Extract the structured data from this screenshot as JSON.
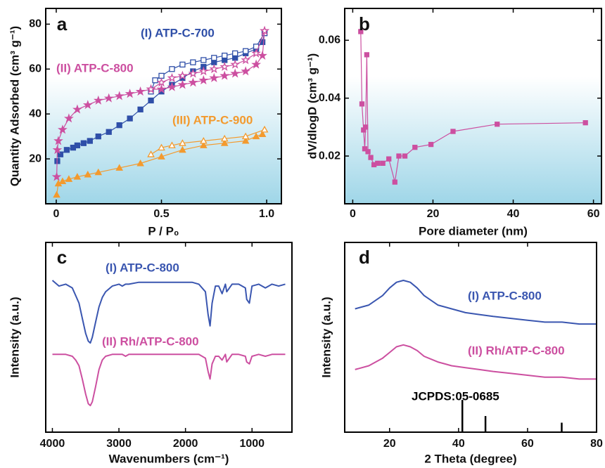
{
  "chart_data": [
    {
      "type": "line",
      "panel_label": "a",
      "xlabel": "P / P₀",
      "ylabel": "Quantity Adsorbed (cm³ g⁻¹)",
      "xlim": [
        -0.05,
        1.07
      ],
      "ylim": [
        0,
        87
      ],
      "xticks": [
        0,
        0.5,
        {
          "value": 1,
          "label": "1.0"
        }
      ],
      "yticks": [
        20,
        40,
        60,
        80
      ],
      "series": [
        {
          "name": "(I) ATP-C-700",
          "color": "#2f4fa8",
          "marker": "square",
          "filled": true,
          "x": [
            0.005,
            0.02,
            0.05,
            0.08,
            0.1,
            0.13,
            0.16,
            0.2,
            0.25,
            0.3,
            0.35,
            0.4,
            0.45,
            0.5,
            0.55,
            0.6,
            0.65,
            0.7,
            0.75,
            0.8,
            0.85,
            0.9,
            0.95,
            0.98,
            0.99
          ],
          "values": [
            19,
            22,
            24,
            25,
            26,
            27,
            28,
            30,
            32,
            35,
            38,
            42,
            46,
            50,
            53,
            56,
            59,
            61,
            63,
            64,
            65,
            67,
            69,
            72,
            76
          ]
        },
        {
          "color": "#2f4fa8",
          "marker": "square",
          "filled": false,
          "x": [
            0.99,
            0.95,
            0.9,
            0.85,
            0.8,
            0.75,
            0.7,
            0.65,
            0.6,
            0.55,
            0.5,
            0.47,
            0.45
          ],
          "values": [
            76,
            70,
            68,
            67,
            66,
            65,
            64,
            63,
            62,
            60,
            57,
            55,
            50
          ]
        },
        {
          "name": "(II) ATP-C-800",
          "color": "#cc4fa0",
          "marker": "star",
          "filled": true,
          "x": [
            0.002,
            0.005,
            0.01,
            0.03,
            0.06,
            0.1,
            0.15,
            0.2,
            0.25,
            0.3,
            0.35,
            0.4,
            0.45,
            0.5,
            0.55,
            0.6,
            0.65,
            0.7,
            0.75,
            0.8,
            0.85,
            0.9,
            0.95,
            0.98,
            0.99
          ],
          "values": [
            12,
            24,
            28,
            33,
            38,
            42,
            44,
            46,
            47,
            48,
            49,
            50,
            51,
            51,
            52,
            53,
            54,
            55,
            56,
            57,
            58,
            59,
            62,
            66,
            77
          ]
        },
        {
          "color": "#cc4fa0",
          "marker": "star",
          "filled": false,
          "x": [
            0.99,
            0.95,
            0.9,
            0.85,
            0.8,
            0.75,
            0.7,
            0.65,
            0.6,
            0.55,
            0.5,
            0.45
          ],
          "values": [
            77,
            67,
            64,
            62,
            61,
            60,
            59,
            58,
            57,
            56,
            54,
            51
          ]
        },
        {
          "name": "(III) ATP-C-900",
          "color": "#f39a2e",
          "marker": "triangle",
          "filled": true,
          "x": [
            0.002,
            0.01,
            0.03,
            0.06,
            0.1,
            0.15,
            0.2,
            0.3,
            0.4,
            0.5,
            0.6,
            0.7,
            0.8,
            0.9,
            0.95,
            0.98,
            0.99
          ],
          "values": [
            4,
            9,
            10,
            11,
            12,
            13,
            14,
            16,
            18,
            21,
            24,
            26,
            27,
            28,
            30,
            31,
            33
          ]
        },
        {
          "color": "#f39a2e",
          "marker": "triangle",
          "filled": false,
          "x": [
            0.99,
            0.9,
            0.8,
            0.7,
            0.6,
            0.55,
            0.5,
            0.45
          ],
          "values": [
            33,
            30,
            29,
            28,
            27,
            26,
            25,
            22
          ]
        }
      ]
    },
    {
      "type": "line",
      "panel_label": "b",
      "xlabel": "Pore diameter (nm)",
      "ylabel": "dV/dlogD (cm³ g⁻¹)",
      "xlim": [
        -2,
        62
      ],
      "ylim": [
        0.0035,
        0.071
      ],
      "xticks": [
        0,
        20,
        40,
        60
      ],
      "yticks": [
        0.02,
        0.04,
        0.06
      ],
      "series": [
        {
          "color": "#cc4fa0",
          "marker": "square",
          "filled": true,
          "x": [
            2.0,
            2.3,
            2.7,
            3.0,
            3.2,
            3.5,
            3.8,
            4.5,
            5.3,
            6.2,
            7.5,
            9,
            10.5,
            11.5,
            13,
            15.5,
            19.5,
            25,
            36,
            58
          ],
          "values": [
            0.063,
            0.038,
            0.029,
            0.0225,
            0.03,
            0.055,
            0.0215,
            0.0195,
            0.017,
            0.0175,
            0.0175,
            0.019,
            0.011,
            0.02,
            0.02,
            0.023,
            0.024,
            0.0285,
            0.031,
            0.0315
          ]
        }
      ]
    },
    {
      "type": "line",
      "panel_label": "c",
      "xlabel": "Wavenumbers (cm⁻¹)",
      "ylabel": "Intensity (a.u.)",
      "xlim": [
        4100,
        400
      ],
      "ylim": [
        0,
        100
      ],
      "xticks": [
        4000,
        3000,
        2000,
        1000
      ],
      "series": [
        {
          "name": "(I) ATP-C-800",
          "color": "#3a56b0",
          "x": [
            4000,
            3900,
            3800,
            3700,
            3650,
            3600,
            3550,
            3500,
            3460,
            3430,
            3400,
            3350,
            3300,
            3250,
            3200,
            3100,
            3000,
            2950,
            2900,
            2850,
            2700,
            2500,
            2300,
            2100,
            2000,
            1900,
            1800,
            1700,
            1660,
            1630,
            1600,
            1550,
            1500,
            1450,
            1400,
            1380,
            1300,
            1200,
            1100,
            1080,
            1040,
            1000,
            900,
            800,
            700,
            600,
            500
          ],
          "values": [
            80,
            77,
            78,
            76,
            72,
            68,
            60,
            52,
            48,
            47,
            50,
            58,
            66,
            71,
            74,
            77,
            78,
            77,
            78,
            78,
            79,
            79,
            79,
            79,
            79,
            79,
            78,
            74,
            62,
            56,
            68,
            77,
            77,
            73,
            78,
            74,
            78,
            78,
            76,
            70,
            68,
            77,
            78,
            76,
            78,
            77,
            78
          ]
        },
        {
          "name": "(II) Rh/ATP-C-800",
          "color": "#cc4fa0",
          "x": [
            4000,
            3900,
            3800,
            3700,
            3650,
            3600,
            3550,
            3500,
            3460,
            3430,
            3400,
            3350,
            3300,
            3250,
            3200,
            3100,
            3000,
            2950,
            2900,
            2850,
            2700,
            2500,
            2300,
            2100,
            2000,
            1900,
            1800,
            1700,
            1660,
            1630,
            1600,
            1550,
            1500,
            1450,
            1400,
            1380,
            1300,
            1200,
            1100,
            1080,
            1040,
            1000,
            900,
            800,
            700,
            600,
            500
          ],
          "values": [
            41,
            41,
            41,
            40,
            38,
            35,
            28,
            20,
            15,
            14,
            16,
            24,
            33,
            38,
            40,
            41,
            41,
            41,
            40,
            41,
            41,
            41,
            41,
            41,
            41,
            41,
            41,
            39,
            32,
            28,
            36,
            40,
            40,
            38,
            41,
            37,
            41,
            41,
            40,
            37,
            36,
            40,
            41,
            40,
            41,
            41,
            41
          ]
        }
      ]
    },
    {
      "type": "line",
      "panel_label": "d",
      "xlabel": "2 Theta (degree)",
      "ylabel": "Intensity (a.u.)",
      "xlim": [
        7,
        80
      ],
      "ylim": [
        0,
        100
      ],
      "xticks": [
        20,
        40,
        60,
        80
      ],
      "series": [
        {
          "name": "(I) ATP-C-800",
          "color": "#3a56b0",
          "x": [
            10,
            14,
            18,
            20,
            22,
            24,
            26,
            28,
            30,
            34,
            38,
            42,
            46,
            50,
            55,
            60,
            65,
            70,
            75,
            80
          ],
          "values": [
            65,
            67,
            72,
            76,
            79,
            80,
            79,
            76,
            72,
            67,
            65,
            63,
            62,
            61,
            60,
            59,
            58,
            58,
            57,
            57
          ]
        },
        {
          "name": "(II) Rh/ATP-C-800",
          "color": "#cc4fa0",
          "x": [
            10,
            14,
            18,
            20,
            22,
            24,
            26,
            28,
            30,
            34,
            38,
            42,
            46,
            50,
            55,
            60,
            65,
            70,
            75,
            80
          ],
          "values": [
            33,
            35,
            39,
            42,
            45,
            46,
            45,
            43,
            40,
            37,
            35,
            34,
            33,
            32,
            31,
            30,
            29,
            29,
            28,
            28
          ]
        }
      ],
      "reference": {
        "name": "JCPDS:05-0685",
        "color": "#000000",
        "x": [
          41.1,
          47.8,
          69.9
        ],
        "values": [
          17,
          8.5,
          5
        ]
      }
    }
  ]
}
